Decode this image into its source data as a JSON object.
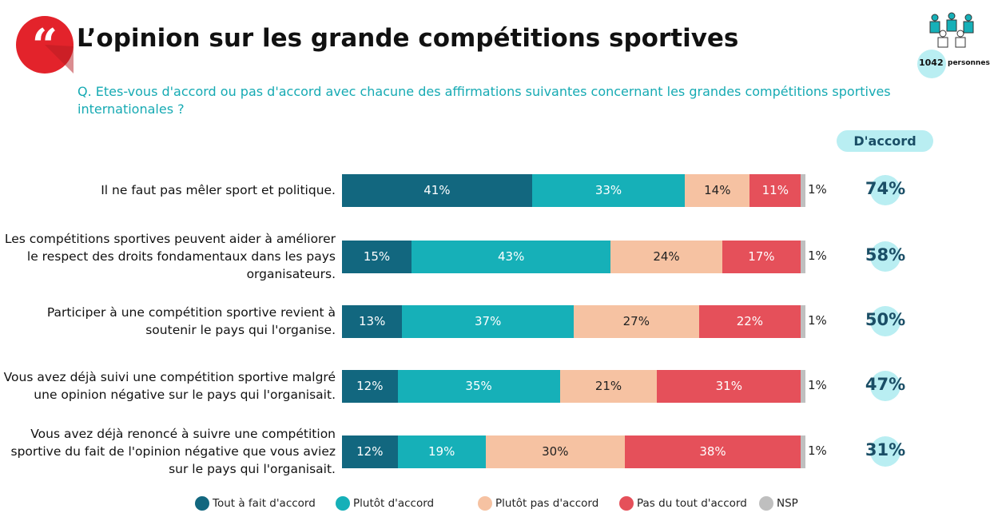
{
  "chart_data": {
    "type": "bar",
    "orientation": "horizontal",
    "stacked": true,
    "title": "L’opinion sur les grande compétitions sportives",
    "subtitle": "Q. Etes-vous d'accord ou pas d'accord avec chacune des affirmations suivantes concernant les grandes compétitions sportives internationales ?",
    "sample": {
      "count": 1042,
      "unit": "personnes"
    },
    "categories": [
      "Il ne faut pas mêler sport et politique.",
      "Les compétitions sportives peuvent aider à améliorer le respect des droits fondamentaux dans les pays organisateurs.",
      "Participer à une compétition sportive revient à soutenir le pays qui l'organise.",
      "Vous avez déjà suivi une compétition sportive malgré une opinion négative sur le pays qui l'organisait.",
      "Vous avez déjà renoncé à suivre une compétition sportive du fait de l'opinion négative que vous aviez sur le pays qui l'organisait."
    ],
    "series": [
      {
        "name": "Tout à fait d'accord",
        "color": "#12677f",
        "values": [
          41,
          15,
          13,
          12,
          12
        ],
        "value_labels": [
          "41%",
          "15%",
          "13%",
          "12%",
          "12%"
        ]
      },
      {
        "name": "Plutôt d'accord",
        "color": "#16b0b8",
        "values": [
          33,
          43,
          37,
          35,
          19
        ],
        "value_labels": [
          "33%",
          "43%",
          "37%",
          "35%",
          "19%"
        ]
      },
      {
        "name": "Plutôt pas d'accord",
        "color": "#f6c2a2",
        "values": [
          14,
          24,
          27,
          21,
          30
        ],
        "value_labels": [
          "14%",
          "24%",
          "27%",
          "21%",
          "30%"
        ]
      },
      {
        "name": "Pas du tout d'accord",
        "color": "#e5505a",
        "values": [
          11,
          17,
          22,
          31,
          38
        ],
        "value_labels": [
          "11%",
          "17%",
          "22%",
          "31%",
          "38%"
        ]
      },
      {
        "name": "NSP",
        "color": "#bfbfbf",
        "values": [
          1,
          1,
          1,
          1,
          1
        ],
        "value_labels": [
          "1%",
          "1%",
          "1%",
          "1%",
          "1%"
        ]
      }
    ],
    "agree": {
      "label": "D'accord",
      "values": [
        74,
        58,
        50,
        47,
        31
      ],
      "value_labels": [
        "74%",
        "58%",
        "50%",
        "47%",
        "31%"
      ]
    }
  }
}
